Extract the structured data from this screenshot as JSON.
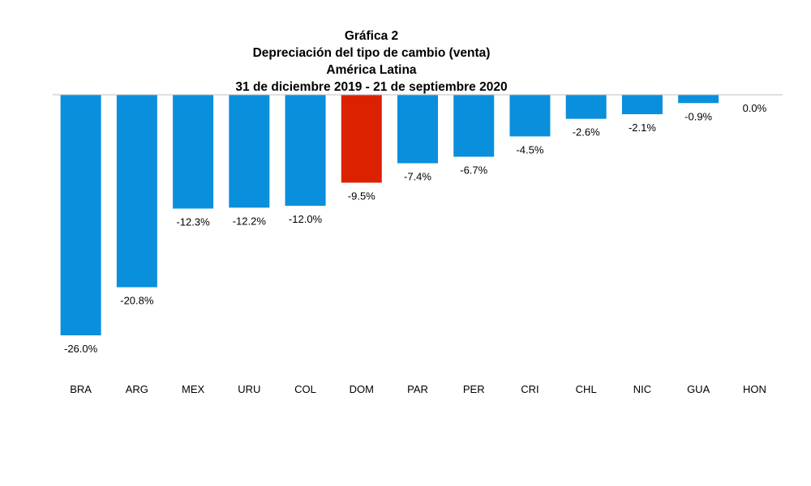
{
  "chart_data": {
    "type": "bar",
    "title": "Gráfica 2",
    "subtitle_lines": [
      "Depreciación del tipo de cambio (venta)",
      "América Latina",
      "31 de diciembre 2019 - 21 de septiembre 2020"
    ],
    "categories": [
      "BRA",
      "ARG",
      "MEX",
      "URU",
      "COL",
      "DOM",
      "PAR",
      "PER",
      "CRI",
      "CHL",
      "NIC",
      "GUA",
      "HON"
    ],
    "values": [
      -26.0,
      -20.8,
      -12.3,
      -12.2,
      -12.0,
      -9.5,
      -7.4,
      -6.7,
      -4.5,
      -2.6,
      -2.1,
      -0.9,
      0.0
    ],
    "value_labels": [
      "-26.0%",
      "-20.8%",
      "-12.3%",
      "-12.2%",
      "-12.0%",
      "-9.5%",
      "-7.4%",
      "-6.7%",
      "-4.5%",
      "-2.6%",
      "-2.1%",
      "-0.9%",
      "0.0%"
    ],
    "xlabel": "",
    "ylabel": "",
    "ylim": [
      -26.0,
      0
    ],
    "grid": false,
    "legend": "none",
    "colors": {
      "default_bar": "#0A8FDC",
      "highlight_bar": "#DC2100",
      "axis_line": "#BFBFBF"
    },
    "highlight_category": "DOM"
  }
}
